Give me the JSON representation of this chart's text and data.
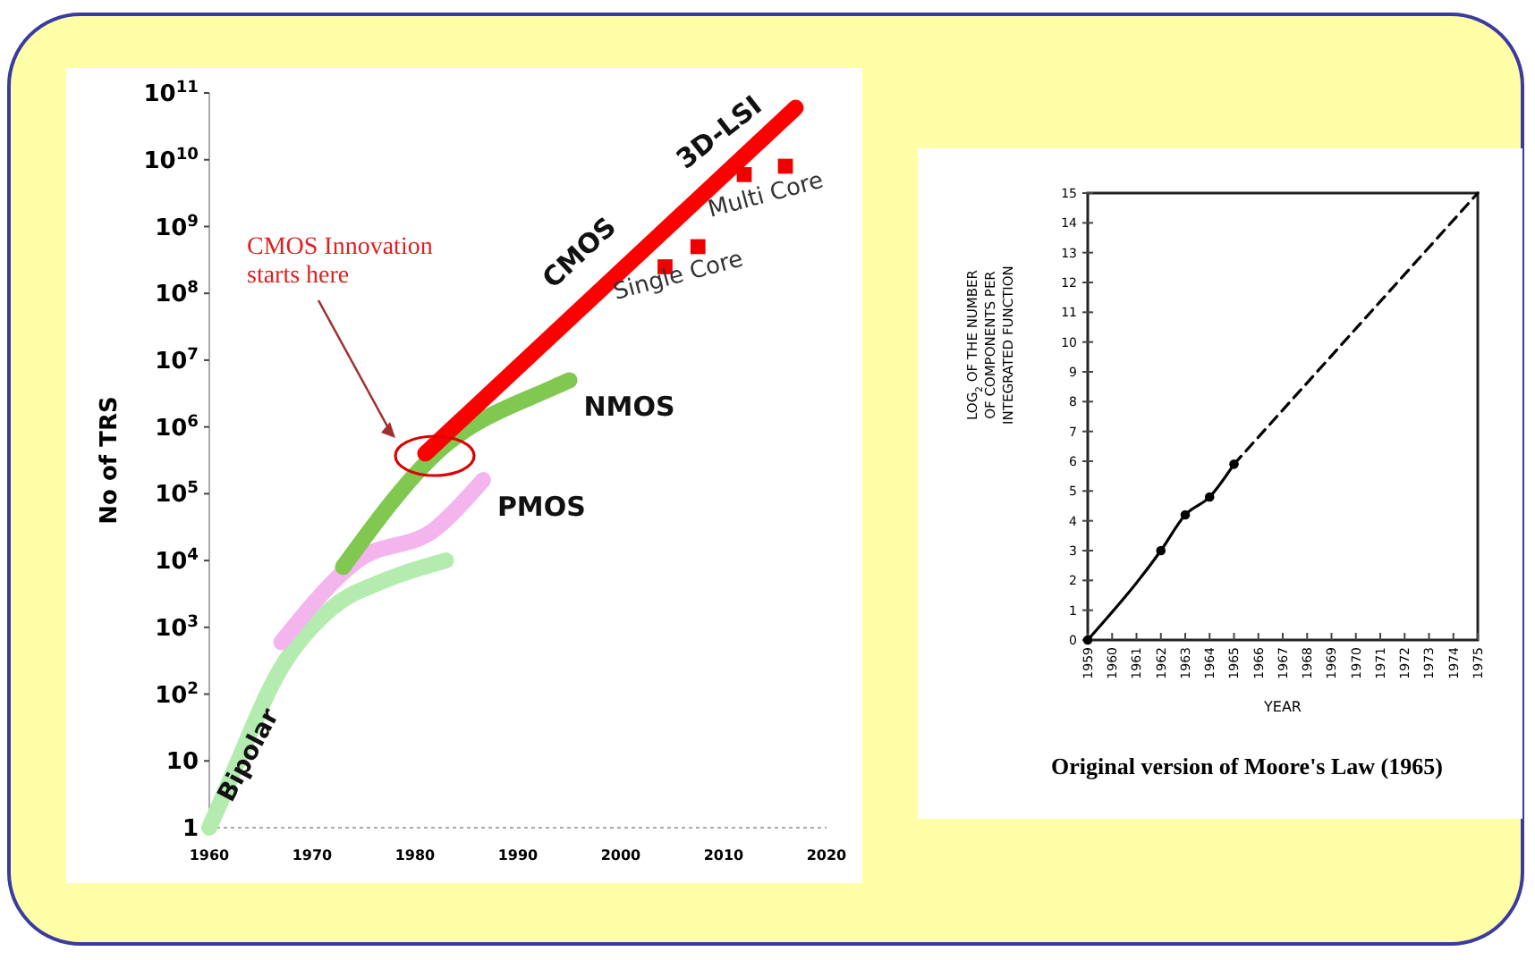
{
  "chart_data": [
    {
      "type": "line",
      "ylabel": "No of TRS",
      "log": "y",
      "xlim": [
        1960,
        2020
      ],
      "xticks": [
        1960,
        1970,
        1980,
        1990,
        2000,
        2010,
        2020
      ],
      "ylim": [
        1,
        100000000000
      ],
      "yticks": [
        1,
        10,
        {
          "value": 100,
          "label": "10$^{2}$"
        },
        {
          "value": 1000,
          "label": "10$^{3}$"
        },
        {
          "value": 10000,
          "label": "10$^{4}$"
        },
        {
          "value": 100000,
          "label": "10$^{5}$"
        },
        {
          "value": 1000000,
          "label": "10$^{6}$"
        },
        {
          "value": 10000000,
          "label": "10$^{7}$"
        },
        {
          "value": 100000000,
          "label": "10$^{8}$"
        },
        {
          "value": 1000000000,
          "label": "10$^{9}$"
        },
        {
          "value": 10000000000,
          "label": "10$^{10}$"
        },
        {
          "value": 100000000000,
          "label": "10$^{11}$"
        }
      ],
      "series": [
        {
          "name": "Bipolar",
          "color": "#b4ecb0",
          "x": [
            1960,
            1961.7,
            1967,
            1972,
            1977,
            1983
          ],
          "values": [
            1,
            4,
            250,
            2000,
            5000,
            10000
          ]
        },
        {
          "name": "PMOS",
          "color": "#f4b4ee",
          "x": [
            1967,
            1974.4,
            1982,
            1986.6
          ],
          "values": [
            600,
            10000,
            30000,
            160000
          ]
        },
        {
          "name": "NMOS",
          "color": "#80c850",
          "x": [
            1973,
            1982,
            1993.6,
            1995
          ],
          "values": [
            8000,
            400000,
            4000000,
            5000000
          ]
        },
        {
          "name": "CMOS",
          "color": "#ff0000",
          "x": [
            1981,
            2017
          ],
          "values": [
            400000,
            60000000000
          ]
        },
        {
          "name": "Single Core",
          "type": "scatter",
          "marker": "square",
          "color": "#ee0000",
          "x": [
            2004.3,
            2007.5
          ],
          "values": [
            250000000,
            500000000
          ]
        },
        {
          "name": "Multi Core",
          "type": "scatter",
          "marker": "square",
          "color": "#ee0000",
          "x": [
            2012,
            2016
          ],
          "values": [
            6000000000,
            8000000000
          ]
        }
      ],
      "annotations": [
        "CMOS Innovation starts here",
        "3D-LSI"
      ]
    },
    {
      "type": "line",
      "xlabel": "YEAR",
      "ylabel": "LOG$_{2}$ OF THE NUMBER OF COMPONENTS PER INTEGRATED FUNCTION",
      "xlim": [
        1959,
        1975
      ],
      "xticks": [
        1959,
        1960,
        1961,
        1962,
        1963,
        1964,
        1965,
        1966,
        1967,
        1968,
        1969,
        1970,
        1971,
        1972,
        1973,
        1974,
        1975
      ],
      "ylim": [
        0,
        15
      ],
      "yticks": [
        0,
        1,
        2,
        3,
        4,
        5,
        6,
        7,
        8,
        9,
        10,
        11,
        12,
        13,
        14,
        15
      ],
      "series": [
        {
          "color": "#000000",
          "x": [
            1959,
            1962,
            1963,
            1964,
            1965
          ],
          "values": [
            0,
            3,
            4.2,
            4.8,
            5.9
          ],
          "marker": "circle",
          "line_style": "solid"
        },
        {
          "color": "#000000",
          "x": [
            1965,
            1975
          ],
          "values": [
            5.9,
            15
          ],
          "marker": "none",
          "line_style": "dashed"
        }
      ],
      "annotations": [
        "Original version of Moore's Law (1965)"
      ]
    }
  ]
}
